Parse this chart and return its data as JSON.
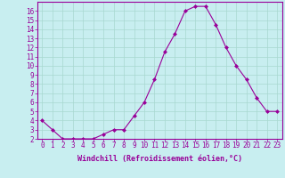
{
  "x": [
    0,
    1,
    2,
    3,
    4,
    5,
    6,
    7,
    8,
    9,
    10,
    11,
    12,
    13,
    14,
    15,
    16,
    17,
    18,
    19,
    20,
    21,
    22,
    23
  ],
  "y": [
    4,
    3,
    2,
    2,
    2,
    2,
    2.5,
    3,
    3,
    4.5,
    6,
    8.5,
    11.5,
    13.5,
    16,
    16.5,
    16.5,
    14.5,
    12,
    10,
    8.5,
    6.5,
    5,
    5
  ],
  "line_color": "#990099",
  "marker": "D",
  "marker_size": 2.0,
  "bg_color": "#c8eef0",
  "grid_color": "#a8d8d0",
  "xlabel": "Windchill (Refroidissement éolien,°C)",
  "ylim": [
    2,
    17
  ],
  "yticks": [
    2,
    3,
    4,
    5,
    6,
    7,
    8,
    9,
    10,
    11,
    12,
    13,
    14,
    15,
    16
  ],
  "xlim": [
    -0.5,
    23.5
  ],
  "xticks": [
    0,
    1,
    2,
    3,
    4,
    5,
    6,
    7,
    8,
    9,
    10,
    11,
    12,
    13,
    14,
    15,
    16,
    17,
    18,
    19,
    20,
    21,
    22,
    23
  ],
  "tick_fontsize": 5.5,
  "xlabel_fontsize": 6.0,
  "tick_color": "#990099",
  "label_color": "#990099",
  "spine_color": "#990099"
}
